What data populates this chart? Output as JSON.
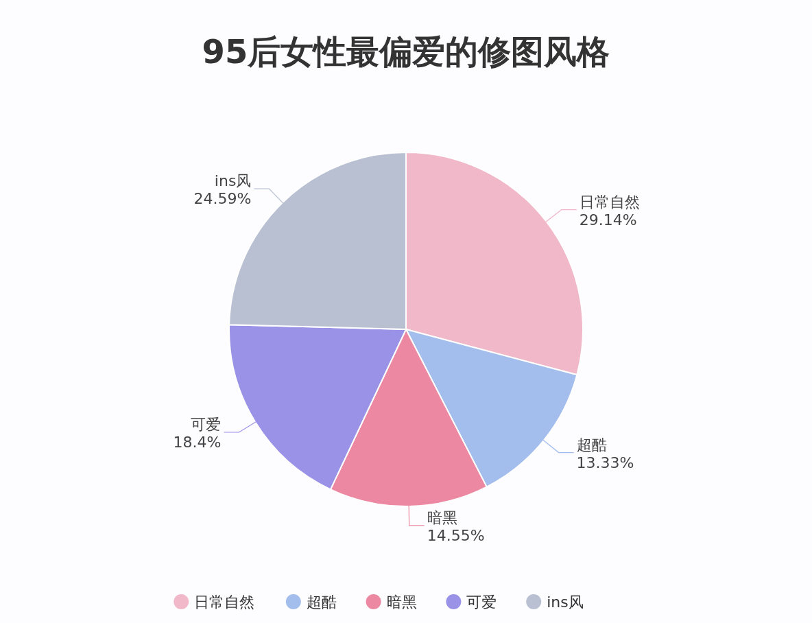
{
  "chart_data": {
    "type": "pie",
    "title": "95后女性最偏爱的修图风格",
    "categories": [
      "日常自然",
      "超酷",
      "暗黑",
      "可爱",
      "ins风"
    ],
    "values": [
      29.14,
      13.33,
      14.55,
      18.4,
      24.59
    ],
    "colors": [
      "#f0b8c9",
      "#a3bdec",
      "#ec88a2",
      "#9a92e6",
      "#b8c0d2"
    ],
    "value_labels": [
      "29.14%",
      "13.33%",
      "14.55%",
      "18.4%",
      "24.59%"
    ],
    "legend": "bottom"
  }
}
